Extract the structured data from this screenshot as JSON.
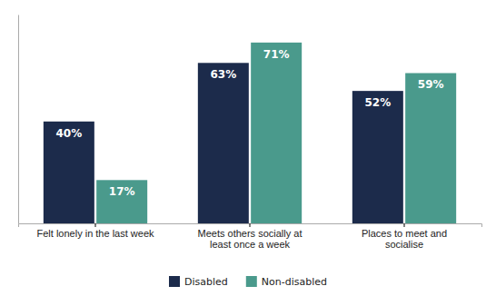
{
  "chart_data": {
    "type": "bar",
    "categories": [
      "Felt lonely in the last week",
      "Meets others socially at\nleast once a week",
      "Places to meet and\nsocialise"
    ],
    "series": [
      {
        "name": "Disabled",
        "color": "#1c2b4b",
        "values": [
          40,
          63,
          52
        ],
        "value_labels": [
          "40%",
          "63%",
          "52%"
        ]
      },
      {
        "name": "Non-disabled",
        "color": "#4a9a8c",
        "values": [
          17,
          71,
          59
        ],
        "value_labels": [
          "17%",
          "71%",
          "59%"
        ]
      }
    ],
    "ylim": [
      0,
      82
    ],
    "data_labels": true,
    "tick_labels": "x",
    "grid": false,
    "legend": "bottom"
  }
}
